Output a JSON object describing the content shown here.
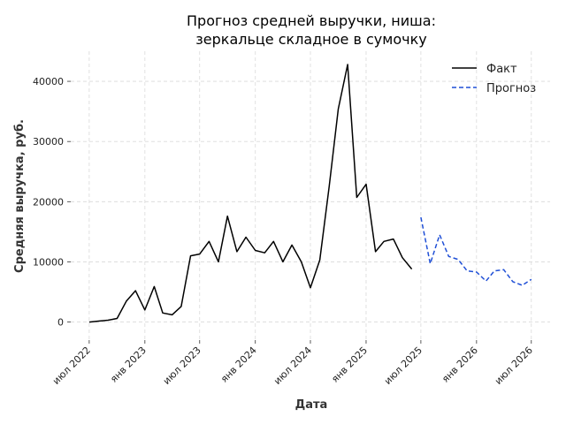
{
  "chart_data": {
    "type": "line",
    "title_lines": [
      "Прогноз средней выручки, ниша:",
      "зеркальце складное в сумочку"
    ],
    "xlabel": "Дата",
    "ylabel": "Средняя выручка, руб.",
    "x_ticks": [
      {
        "date": "2022-07-01",
        "label": "июл 2022"
      },
      {
        "date": "2023-01-01",
        "label": "янв 2023"
      },
      {
        "date": "2023-07-01",
        "label": "июл 2023"
      },
      {
        "date": "2024-01-01",
        "label": "янв 2024"
      },
      {
        "date": "2024-07-01",
        "label": "июл 2024"
      },
      {
        "date": "2025-01-01",
        "label": "янв 2025"
      },
      {
        "date": "2025-07-01",
        "label": "июл 2025"
      },
      {
        "date": "2026-01-01",
        "label": "янв 2026"
      },
      {
        "date": "2026-07-01",
        "label": "июл 2026"
      }
    ],
    "y_ticks": [
      0,
      10000,
      20000,
      30000,
      40000
    ],
    "xlim": [
      "2022-05-01",
      "2026-09-01"
    ],
    "ylim": [
      -3000,
      45000
    ],
    "grid": true,
    "legend_position": "top-right",
    "series": [
      {
        "name": "Факт",
        "color": "#000000",
        "style": "solid",
        "x": [
          "2022-07-01",
          "2022-08-01",
          "2022-09-01",
          "2022-10-01",
          "2022-11-01",
          "2022-12-01",
          "2023-01-01",
          "2023-02-01",
          "2023-03-01",
          "2023-04-01",
          "2023-05-01",
          "2023-06-01",
          "2023-07-01",
          "2023-08-01",
          "2023-09-01",
          "2023-10-01",
          "2023-11-01",
          "2023-12-01",
          "2024-01-01",
          "2024-02-01",
          "2024-03-01",
          "2024-04-01",
          "2024-05-01",
          "2024-06-01",
          "2024-07-01",
          "2024-08-01",
          "2024-09-01",
          "2024-10-01",
          "2024-11-01",
          "2024-12-01",
          "2025-01-01",
          "2025-02-01",
          "2025-03-01",
          "2025-04-01",
          "2025-05-01",
          "2025-06-01"
        ],
        "y": [
          0,
          150,
          300,
          600,
          3500,
          5200,
          2000,
          5900,
          1500,
          1200,
          2600,
          11000,
          11300,
          13400,
          10000,
          17600,
          11700,
          14100,
          11900,
          11500,
          13400,
          10000,
          12800,
          10000,
          5700,
          10300,
          22500,
          35400,
          42800,
          20700,
          22900,
          11700,
          13400,
          13800,
          10700,
          8800
        ]
      },
      {
        "name": "Прогноз",
        "color": "#1f4fd6",
        "style": "dashed",
        "x": [
          "2025-07-01",
          "2025-08-01",
          "2025-09-01",
          "2025-10-01",
          "2025-11-01",
          "2025-12-01",
          "2026-01-01",
          "2026-02-01",
          "2026-03-01",
          "2026-04-01",
          "2026-05-01",
          "2026-06-01",
          "2026-07-01"
        ],
        "y": [
          17400,
          9700,
          14500,
          10900,
          10400,
          8500,
          8300,
          6800,
          8500,
          8700,
          6700,
          6100,
          7100
        ]
      }
    ]
  }
}
